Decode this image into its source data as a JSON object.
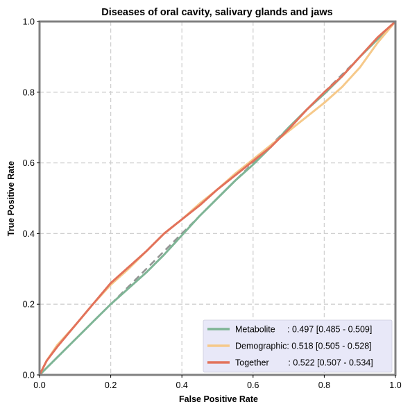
{
  "chart_data": {
    "type": "line",
    "title": "Diseases of oral cavity, salivary glands and jaws",
    "xlabel": "False Positive Rate",
    "ylabel": "True Positive Rate",
    "xlim": [
      0,
      1
    ],
    "ylim": [
      0,
      1
    ],
    "xticks": [
      "0.0",
      "0.2",
      "0.4",
      "0.6",
      "0.8",
      "1.0"
    ],
    "yticks": [
      "0.0",
      "0.2",
      "0.4",
      "0.6",
      "0.8",
      "1.0"
    ],
    "grid": true,
    "legend_position": "lower-right",
    "reference_line": {
      "style": "dashed",
      "color": "#808080",
      "x": [
        0,
        1
      ],
      "y": [
        0,
        1
      ]
    },
    "series": [
      {
        "name": "Metabolite",
        "legend_label": "Metabolite     : 0.497 [0.485 - 0.509]",
        "color": "#7fb596",
        "x": [
          0,
          0.02,
          0.05,
          0.1,
          0.15,
          0.2,
          0.25,
          0.3,
          0.35,
          0.4,
          0.45,
          0.5,
          0.55,
          0.6,
          0.65,
          0.7,
          0.75,
          0.8,
          0.85,
          0.9,
          0.95,
          1.0
        ],
        "y": [
          0,
          0.02,
          0.05,
          0.1,
          0.15,
          0.2,
          0.245,
          0.29,
          0.34,
          0.395,
          0.45,
          0.5,
          0.55,
          0.595,
          0.645,
          0.7,
          0.75,
          0.795,
          0.845,
          0.9,
          0.95,
          1.0
        ]
      },
      {
        "name": "Demographic",
        "legend_label": "Demographic: 0.518 [0.505 - 0.528]",
        "color": "#f6c98a",
        "x": [
          0,
          0.02,
          0.05,
          0.1,
          0.15,
          0.2,
          0.25,
          0.3,
          0.35,
          0.4,
          0.45,
          0.5,
          0.55,
          0.6,
          0.65,
          0.7,
          0.75,
          0.8,
          0.85,
          0.9,
          0.95,
          1.0
        ],
        "y": [
          0,
          0.04,
          0.085,
          0.14,
          0.2,
          0.255,
          0.3,
          0.35,
          0.4,
          0.44,
          0.485,
          0.525,
          0.57,
          0.61,
          0.65,
          0.69,
          0.73,
          0.77,
          0.815,
          0.87,
          0.94,
          1.0
        ]
      },
      {
        "name": "Together",
        "legend_label": "Together        : 0.522 [0.507 - 0.534]",
        "color": "#e2725b",
        "x": [
          0,
          0.02,
          0.05,
          0.1,
          0.15,
          0.2,
          0.25,
          0.3,
          0.35,
          0.4,
          0.45,
          0.5,
          0.55,
          0.6,
          0.65,
          0.7,
          0.75,
          0.8,
          0.85,
          0.9,
          0.95,
          1.0
        ],
        "y": [
          0,
          0.04,
          0.08,
          0.14,
          0.2,
          0.26,
          0.305,
          0.35,
          0.4,
          0.44,
          0.48,
          0.525,
          0.565,
          0.605,
          0.645,
          0.695,
          0.75,
          0.8,
          0.845,
          0.9,
          0.955,
          1.0
        ]
      }
    ]
  }
}
